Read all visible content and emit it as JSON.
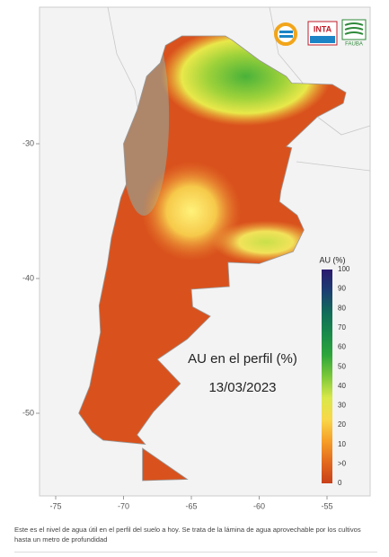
{
  "map": {
    "title": "AU en el perfil (%)",
    "date": "13/03/2023",
    "xticks": [
      -75,
      -70,
      -65,
      -60,
      -55
    ],
    "yticks": [
      -30,
      -40,
      -50
    ]
  },
  "legend": {
    "title": "AU (%)",
    "labels": [
      "100",
      "90",
      "80",
      "70",
      "60",
      "50",
      "40",
      "30",
      "20",
      "10",
      ">0",
      "0"
    ]
  },
  "logos": [
    "INTA",
    "FAUBA"
  ],
  "caption": "Este es el nivel de agua útil en el perfil del suelo a hoy. Se trata de la lámina de agua aprovechable por los cultivos hasta un metro de profundidad"
}
